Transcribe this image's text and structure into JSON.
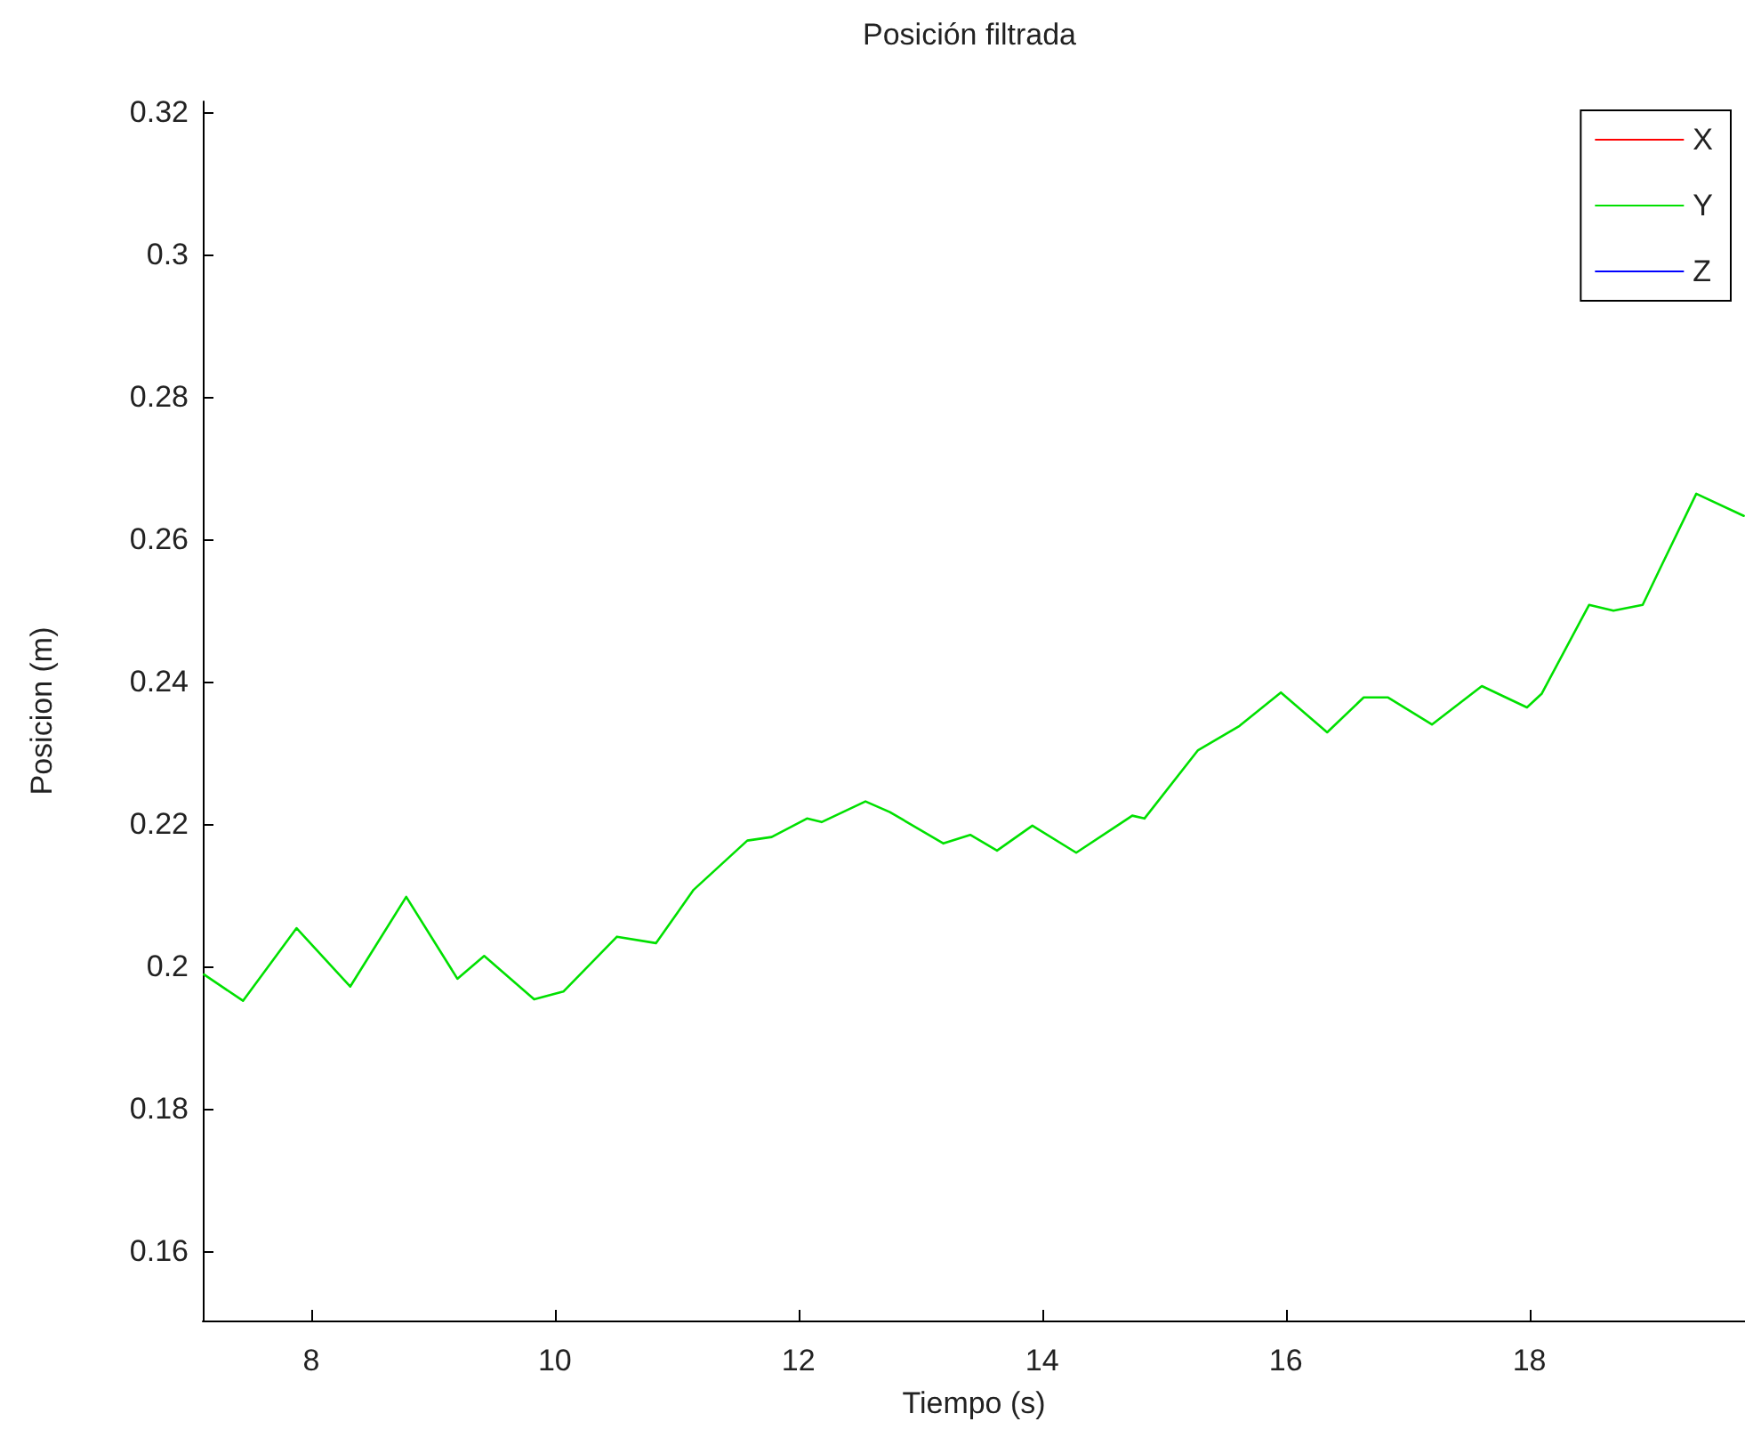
{
  "chart_data": {
    "type": "line",
    "title": "Posición filtrada",
    "xlabel": "Tiempo (s)",
    "ylabel": "Posicion (m)",
    "x": [
      7.12,
      7.44,
      7.88,
      8.32,
      8.78,
      9.2,
      9.42,
      9.83,
      10.07,
      10.51,
      10.83,
      11.14,
      11.58,
      11.78,
      12.07,
      12.19,
      12.55,
      12.75,
      13.19,
      13.41,
      13.63,
      13.92,
      14.28,
      14.74,
      14.84,
      15.28,
      15.62,
      15.96,
      16.34,
      16.64,
      16.84,
      17.2,
      17.61,
      17.98,
      18.1,
      18.49,
      18.69,
      18.93,
      19.07,
      19.37,
      19.76
    ],
    "series": [
      {
        "name": "X",
        "color": "#ff0000",
        "values": [
          null,
          null,
          null,
          null,
          null,
          null,
          null,
          null,
          null,
          null,
          null,
          null,
          null,
          null,
          null,
          null,
          null,
          null,
          null,
          null,
          null,
          null,
          null,
          null,
          null,
          null,
          null,
          null,
          null,
          null,
          null,
          null,
          null,
          null,
          null,
          null,
          null,
          null,
          null,
          null,
          null
        ]
      },
      {
        "name": "Y",
        "color": "#00e000",
        "values": [
          0.1989,
          0.1952,
          0.2054,
          0.1972,
          0.2098,
          0.1983,
          0.2015,
          0.1954,
          0.1965,
          0.2042,
          0.2033,
          0.2108,
          0.2177,
          0.2182,
          0.2208,
          0.2203,
          0.2232,
          0.2217,
          0.2173,
          0.2185,
          0.2163,
          0.2198,
          0.216,
          0.2212,
          0.2208,
          0.2304,
          0.2338,
          0.2385,
          0.2329,
          0.2378,
          0.2378,
          0.234,
          0.2394,
          0.2364,
          0.2383,
          0.2508,
          0.25,
          0.2508,
          0.2558,
          0.2664,
          0.2633
        ]
      },
      {
        "name": "Z",
        "color": "#0000ff",
        "values": [
          null,
          null,
          null,
          null,
          null,
          null,
          null,
          null,
          null,
          null,
          null,
          null,
          null,
          null,
          null,
          null,
          null,
          null,
          null,
          null,
          null,
          null,
          null,
          null,
          null,
          null,
          null,
          null,
          null,
          null,
          null,
          null,
          null,
          null,
          null,
          null,
          null,
          null,
          null,
          null,
          null
        ]
      }
    ],
    "xlim": [
      7.11,
      19.77
    ],
    "xticks": [
      8,
      10,
      12,
      14,
      16,
      18
    ],
    "ylim": [
      0.1503,
      0.3215
    ],
    "yticks": [
      0.16,
      0.18,
      0.2,
      0.22,
      0.24,
      0.26,
      0.28,
      0.3,
      0.32
    ],
    "grid": false,
    "legend": "top right",
    "line_style": "solid"
  }
}
